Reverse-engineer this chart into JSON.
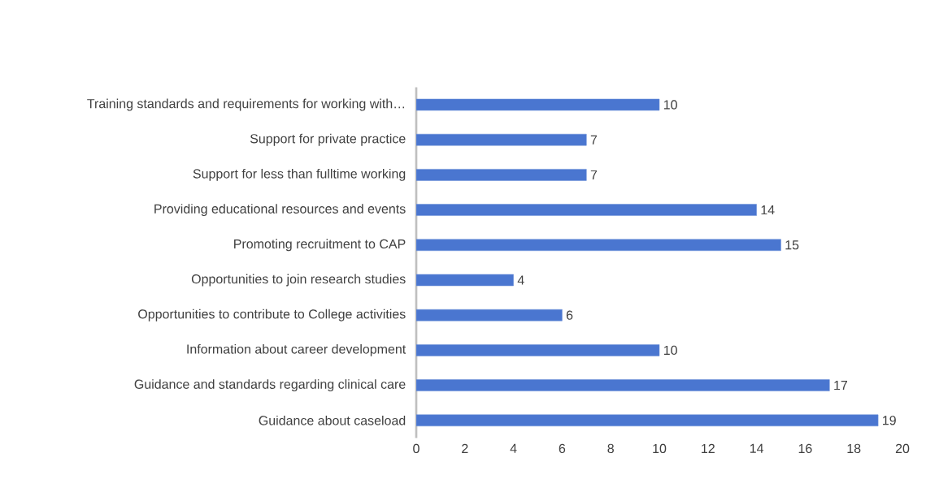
{
  "chart_data": {
    "type": "bar",
    "orientation": "horizontal",
    "categories": [
      "Training standards and requirements for working with…",
      "Support for private practice",
      "Support for less than fulltime working",
      "Providing educational resources and events",
      "Promoting recruitment to CAP",
      "Opportunities to join research studies",
      "Opportunities to contribute to College activities",
      "Information about career development",
      "Guidance and standards regarding clinical care",
      "Guidance about caseload"
    ],
    "values": [
      10,
      7,
      7,
      14,
      15,
      4,
      6,
      10,
      17,
      19
    ],
    "color": "#4a76d0",
    "xlim": [
      0,
      20
    ],
    "xticks": [
      0,
      2,
      4,
      6,
      8,
      10,
      12,
      14,
      16,
      18,
      20
    ],
    "data_labels": true,
    "grid": false
  }
}
